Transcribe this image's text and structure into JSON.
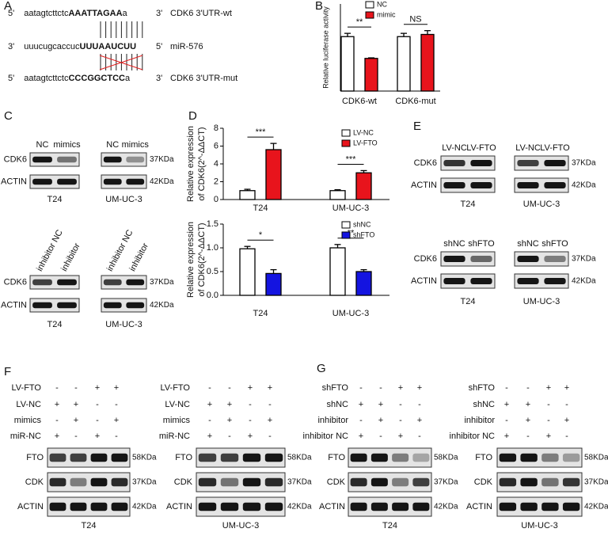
{
  "panel_labels": [
    "A",
    "B",
    "C",
    "D",
    "E",
    "F",
    "G"
  ],
  "panel_a": {
    "rows": [
      {
        "end5": "5'",
        "seq": "aatagtcttctc",
        "site": "AAATTAGAA",
        "tail": "a",
        "end3": "3'",
        "name": "CDK6 3'UTR-wt"
      },
      {
        "end5": "3'",
        "seq": "uuucugcaccuc",
        "site": "UUUAAUCUU",
        "end3": "5'",
        "name": "miR-576"
      },
      {
        "end5": "5'",
        "seq": "aatagtcttctc",
        "site": "CCCGGCTCC",
        "tail": "a",
        "end3": "3'",
        "name": "CDK6 3'UTR-mut"
      }
    ]
  },
  "chart_data": [
    {
      "type": "bar",
      "ylabel": [
        "Relative luciferase activity"
      ],
      "categories": [
        "CDK6-wt",
        "CDK6-mut"
      ],
      "series": [
        {
          "name": "NC",
          "color": "#ffffff",
          "values": [
            1.0,
            1.0
          ],
          "errors": [
            0.06,
            0.06
          ]
        },
        {
          "name": "mimic",
          "color": "#e8141c",
          "values": [
            0.6,
            1.04
          ],
          "errors": [
            0.01,
            0.07
          ]
        }
      ],
      "ylim": [
        0,
        1.6
      ],
      "annotations": [
        "**",
        "NS"
      ]
    },
    {
      "type": "bar",
      "ylabel": [
        "Relative expression",
        "of CDK6(2^-ΔΔCT)"
      ],
      "categories": [
        "T24",
        "UM-UC-3"
      ],
      "series": [
        {
          "name": "LV-NC",
          "color": "#ffffff",
          "values": [
            1.0,
            1.0
          ],
          "errors": [
            0.15,
            0.1
          ]
        },
        {
          "name": "LV-FTO",
          "color": "#e8141c",
          "values": [
            5.6,
            3.0
          ],
          "errors": [
            0.7,
            0.25
          ]
        }
      ],
      "ylim": [
        0,
        8
      ],
      "yticks": [
        0,
        2,
        4,
        6,
        8
      ],
      "annotations": [
        "***",
        "***"
      ]
    },
    {
      "type": "bar",
      "ylabel": [
        "Relative expression",
        "of CDK6(2^-ΔΔCT)"
      ],
      "categories": [
        "T24",
        "UM-UC-3"
      ],
      "series": [
        {
          "name": "shNC",
          "color": "#ffffff",
          "values": [
            0.98,
            1.0
          ],
          "errors": [
            0.05,
            0.07
          ]
        },
        {
          "name": "shFTO",
          "color": "#1414e0",
          "values": [
            0.46,
            0.5
          ],
          "errors": [
            0.08,
            0.04
          ]
        }
      ],
      "ylim": [
        0,
        1.5
      ],
      "yticks": [
        {
          "value": 0,
          "label": "0.0"
        },
        0.5,
        {
          "value": 1,
          "label": "1.0"
        },
        1.5
      ],
      "annotations": [
        "*",
        "**"
      ]
    }
  ],
  "panel_c": {
    "overexpression": {
      "lanes": [
        "NC",
        "mimics"
      ],
      "rows": [
        "CDK6",
        "ACTIN"
      ],
      "sizes": [
        "37KDa",
        "42KDa"
      ],
      "cells": [
        "T24",
        "UM-UC-3"
      ]
    },
    "inhibition": {
      "lanes": [
        "inhibitor NC",
        "inhibitor"
      ],
      "rows": [
        "CDK6",
        "ACTIN"
      ],
      "sizes": [
        "37KDa",
        "42KDa"
      ],
      "cells": [
        "T24",
        "UM-UC-3"
      ]
    }
  },
  "panel_e": {
    "overexpression": {
      "lanes": [
        "LV-NC",
        "LV-FTO"
      ],
      "rows": [
        "CDK6",
        "ACTIN"
      ],
      "sizes": [
        "37KDa",
        "42KDa"
      ],
      "cells": [
        "T24",
        "UM-UC-3"
      ]
    },
    "knockdown": {
      "lanes": [
        "shNC",
        "shFTO"
      ],
      "rows": [
        "CDK6",
        "ACTIN"
      ],
      "sizes": [
        "37KDa",
        "42KDa"
      ],
      "cells": [
        "T24",
        "UM-UC-3"
      ]
    }
  },
  "panel_f": {
    "conditions": [
      {
        "label": "LV-FTO",
        "signs": [
          "-",
          "-",
          "+",
          "+"
        ]
      },
      {
        "label": "LV-NC",
        "signs": [
          "+",
          "+",
          "-",
          "-"
        ]
      },
      {
        "label": "mimics",
        "signs": [
          "-",
          "+",
          "-",
          "+"
        ]
      },
      {
        "label": "miR-NC",
        "signs": [
          "+",
          "-",
          "+",
          "-"
        ]
      }
    ],
    "rows": [
      "FTO",
      "CDK",
      "ACTIN"
    ],
    "sizes": [
      "58KDa",
      "37KDa",
      "42KDa"
    ],
    "cells": [
      "T24",
      "UM-UC-3"
    ]
  },
  "panel_g": {
    "conditions": [
      {
        "label": "shFTO",
        "signs": [
          "-",
          "-",
          "+",
          "+"
        ]
      },
      {
        "label": "shNC",
        "signs": [
          "+",
          "+",
          "-",
          "-"
        ]
      },
      {
        "label": "inhibitor",
        "signs": [
          "-",
          "+",
          "-",
          "+"
        ]
      },
      {
        "label": "inhibitor NC",
        "signs": [
          "+",
          "-",
          "+",
          "-"
        ]
      }
    ],
    "rows": [
      "FTO",
      "CDK",
      "ACTIN"
    ],
    "sizes": [
      "58KDa",
      "37KDa",
      "42KDa"
    ],
    "cells": [
      "T24",
      "UM-UC-3"
    ]
  }
}
